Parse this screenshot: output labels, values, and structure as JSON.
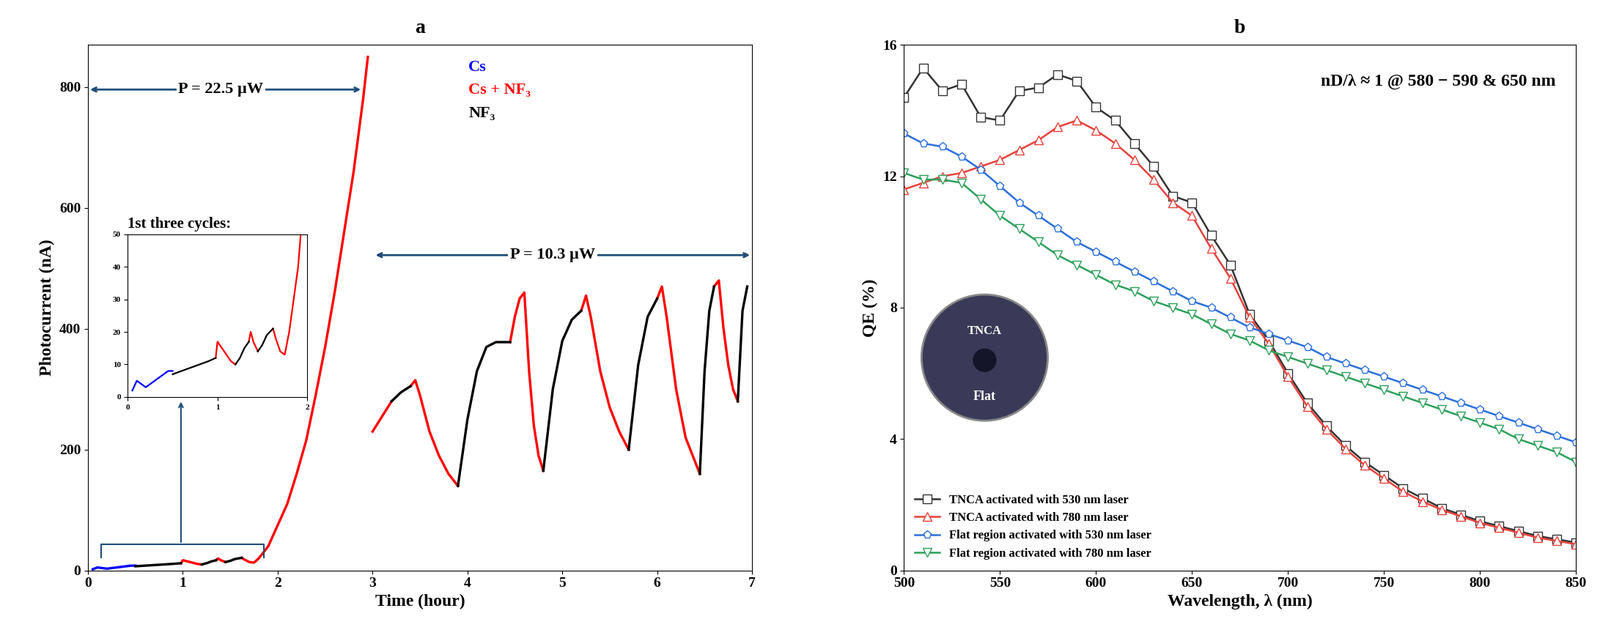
{
  "chart_data": [
    {
      "type": "line",
      "title": "a",
      "x_label": "Time (hour)",
      "y_label": "Photocurrent (nA)",
      "xlim": [
        0,
        7
      ],
      "xticks": [
        0,
        1,
        2,
        3,
        4,
        5,
        6,
        7
      ],
      "ylim": [
        0,
        870
      ],
      "yticks": [
        0,
        200,
        400,
        600,
        800
      ],
      "legend": "upper center",
      "annotations": [
        "P = 22.5 µW",
        "P = 10.3 µW"
      ],
      "inset": {
        "title": "1st three cycles:",
        "xlim": [
          0,
          2
        ],
        "ylim": [
          0,
          50
        ],
        "xticks": [
          0,
          1,
          2
        ],
        "yticks": [
          0,
          10,
          20,
          30,
          40,
          50
        ]
      },
      "series": [
        {
          "name": "Cs",
          "color": "#0000ff",
          "line_style": "solid",
          "x": [
            0.05,
            0.1,
            0.15,
            0.2,
            0.25,
            0.3,
            0.35,
            0.4,
            0.45,
            0.5
          ],
          "values": [
            2,
            5,
            4,
            3,
            4,
            5,
            6,
            7,
            8,
            8
          ]
        },
        {
          "name": "Cs + NF₃",
          "color": "#ff0000",
          "line_style": "solid",
          "x": [
            0.98,
            1.0,
            1.05,
            1.1,
            1.15,
            1.2,
            null,
            1.35,
            1.37,
            1.4,
            1.45,
            null,
            1.62,
            1.65,
            1.7,
            1.75,
            1.8,
            1.9,
            2.0,
            2.1,
            2.2,
            2.3,
            2.4,
            2.5,
            2.6,
            2.7,
            2.8,
            2.9,
            2.95,
            null,
            3.0,
            3.1,
            3.2,
            null,
            3.4,
            3.45,
            3.5,
            3.6,
            3.7,
            3.8,
            3.9,
            null,
            4.45,
            4.5,
            4.55,
            4.6,
            4.65,
            4.7,
            4.75,
            4.8,
            null,
            5.2,
            5.25,
            5.3,
            5.4,
            5.5,
            5.6,
            5.7,
            null,
            6.0,
            6.05,
            6.1,
            6.2,
            6.3,
            6.45,
            null,
            6.6,
            6.65,
            6.7,
            6.75,
            6.8,
            6.85
          ],
          "values": [
            12,
            17,
            15,
            13,
            11,
            10,
            null,
            17,
            20,
            17,
            14,
            null,
            21,
            18,
            14,
            13,
            20,
            40,
            75,
            110,
            160,
            215,
            290,
            370,
            460,
            560,
            660,
            780,
            850,
            null,
            230,
            255,
            280,
            null,
            305,
            315,
            290,
            230,
            190,
            160,
            140,
            null,
            378,
            420,
            450,
            460,
            330,
            240,
            190,
            165,
            null,
            430,
            455,
            420,
            330,
            270,
            230,
            200,
            null,
            450,
            470,
            420,
            300,
            220,
            160,
            null,
            470,
            480,
            400,
            340,
            300,
            280
          ]
        },
        {
          "name": "NF₃",
          "color": "#000000",
          "line_style": "solid",
          "x": [
            0.5,
            0.6,
            0.7,
            0.8,
            0.9,
            0.98,
            null,
            1.2,
            1.25,
            1.3,
            1.35,
            null,
            1.45,
            1.5,
            1.55,
            1.62,
            null,
            3.2,
            3.3,
            3.4,
            null,
            3.9,
            4.0,
            4.1,
            4.2,
            4.3,
            4.45,
            null,
            4.8,
            4.9,
            5.0,
            5.1,
            5.2,
            null,
            5.7,
            5.8,
            5.9,
            6.0,
            null,
            6.45,
            6.5,
            6.55,
            6.6,
            null,
            6.85,
            6.9,
            6.95
          ],
          "values": [
            7,
            8,
            9,
            10,
            11,
            12,
            null,
            10,
            12,
            15,
            17,
            null,
            14,
            16,
            19,
            21,
            null,
            280,
            295,
            305,
            null,
            140,
            250,
            330,
            370,
            378,
            378,
            null,
            165,
            300,
            380,
            415,
            430,
            null,
            200,
            340,
            420,
            450,
            null,
            160,
            330,
            430,
            470,
            null,
            280,
            430,
            470
          ]
        }
      ]
    },
    {
      "type": "line",
      "title": "b",
      "x_label": "Wavelength, λ (nm)",
      "y_label": "QE (%)",
      "xlim": [
        500,
        850
      ],
      "xticks": [
        500,
        550,
        600,
        650,
        700,
        750,
        800,
        850
      ],
      "ylim": [
        0,
        16
      ],
      "yticks": [
        0,
        4,
        8,
        12,
        16
      ],
      "legend": "lower left",
      "annotations": [
        "nD/λ ≈ 1 @ 580 − 590 & 650 nm"
      ],
      "inset_labels": [
        "TNCA",
        "Flat"
      ],
      "x": [
        500,
        510,
        520,
        530,
        540,
        550,
        560,
        570,
        580,
        590,
        600,
        610,
        620,
        630,
        640,
        650,
        660,
        670,
        680,
        690,
        700,
        710,
        720,
        730,
        740,
        750,
        760,
        770,
        780,
        790,
        800,
        810,
        820,
        830,
        840,
        850
      ],
      "series": [
        {
          "name": "TNCA activated with 530 nm laser",
          "color": "#333333",
          "marker": "square",
          "line_style": "solid",
          "values": [
            14.4,
            15.3,
            14.6,
            14.8,
            13.8,
            13.7,
            14.6,
            14.7,
            15.1,
            14.9,
            14.1,
            13.7,
            13.0,
            12.3,
            11.4,
            11.2,
            10.2,
            9.3,
            7.8,
            7.0,
            6.0,
            5.1,
            4.4,
            3.8,
            3.3,
            2.9,
            2.5,
            2.2,
            1.9,
            1.7,
            1.5,
            1.35,
            1.2,
            1.05,
            0.95,
            0.85
          ]
        },
        {
          "name": "TNCA activated with 780 nm laser",
          "color": "#e8403a",
          "marker": "triangle_up",
          "line_style": "solid",
          "values": [
            11.6,
            11.8,
            12.0,
            12.1,
            12.3,
            12.5,
            12.8,
            13.1,
            13.5,
            13.7,
            13.4,
            13.0,
            12.5,
            11.9,
            11.2,
            10.8,
            9.8,
            8.9,
            7.7,
            6.9,
            5.9,
            5.0,
            4.3,
            3.7,
            3.2,
            2.8,
            2.4,
            2.1,
            1.85,
            1.65,
            1.45,
            1.3,
            1.15,
            1.0,
            0.9,
            0.8
          ]
        },
        {
          "name": "Flat region activated with 530 nm laser",
          "color": "#2a6fdb",
          "marker": "pentagon",
          "line_style": "solid",
          "values": [
            13.3,
            13.0,
            12.9,
            12.6,
            12.2,
            11.7,
            11.2,
            10.8,
            10.4,
            10.0,
            9.7,
            9.4,
            9.1,
            8.8,
            8.5,
            8.2,
            8.0,
            7.7,
            7.4,
            7.2,
            7.0,
            6.8,
            6.5,
            6.3,
            6.1,
            5.9,
            5.7,
            5.5,
            5.3,
            5.1,
            4.9,
            4.7,
            4.5,
            4.3,
            4.1,
            3.9
          ]
        },
        {
          "name": "Flat region activated with 780 nm laser",
          "color": "#2ca05a",
          "marker": "triangle_down",
          "line_style": "solid",
          "values": [
            12.1,
            11.9,
            11.9,
            11.8,
            11.3,
            10.8,
            10.4,
            10.0,
            9.6,
            9.3,
            9.0,
            8.7,
            8.5,
            8.2,
            8.0,
            7.8,
            7.5,
            7.2,
            7.0,
            6.7,
            6.5,
            6.3,
            6.1,
            5.9,
            5.7,
            5.5,
            5.3,
            5.1,
            4.9,
            4.7,
            4.5,
            4.3,
            4.0,
            3.8,
            3.6,
            3.3
          ]
        }
      ]
    }
  ]
}
